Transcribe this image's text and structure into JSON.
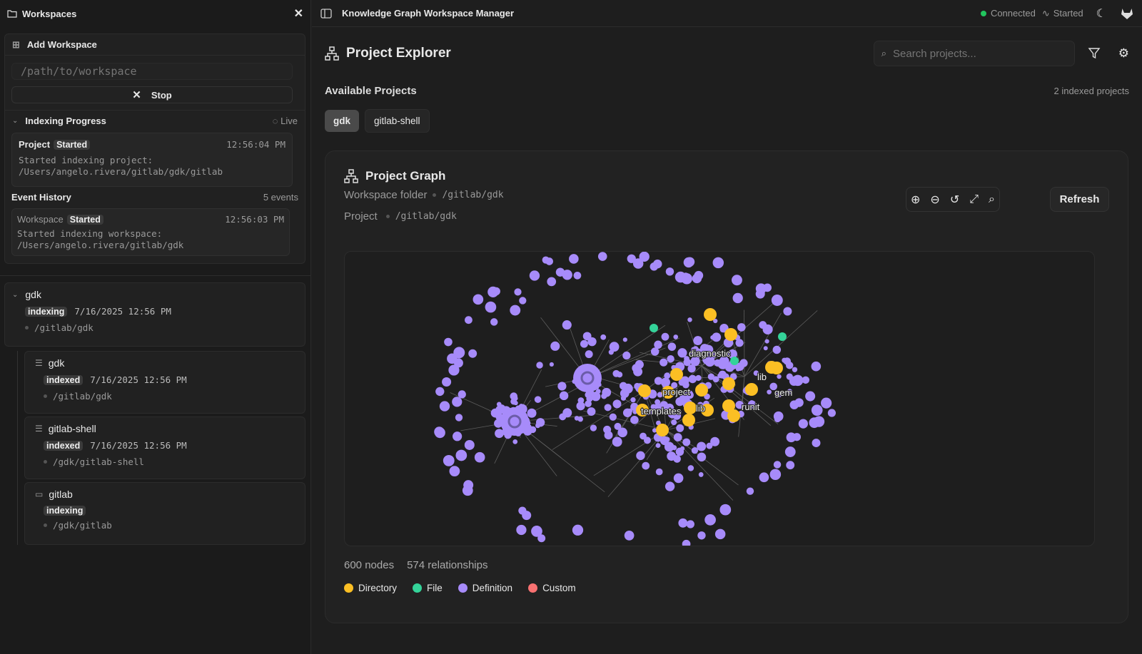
{
  "sidebar": {
    "title": "Workspaces",
    "add": {
      "title": "Add Workspace",
      "placeholder": "/path/to/workspace",
      "stop_label": "Stop"
    },
    "progress": {
      "title": "Indexing Progress",
      "live_label": "Live",
      "current": {
        "type": "Project",
        "status": "Started",
        "time": "12:56:04 PM",
        "message": "Started indexing project:",
        "path": "/Users/angelo.rivera/gitlab/gdk/gitlab"
      }
    },
    "history": {
      "title": "Event History",
      "count": "5 events",
      "events": [
        {
          "type": "Workspace",
          "status": "Started",
          "time": "12:56:03 PM",
          "message": "Started indexing workspace:",
          "path": "/Users/angelo.rivera/gitlab/gdk"
        }
      ]
    },
    "workspace": {
      "name": "gdk",
      "status": "indexing",
      "date": "7/16/2025 12:56 PM",
      "path": "/gitlab/gdk",
      "projects": [
        {
          "name": "gdk",
          "status": "indexed",
          "date": "7/16/2025 12:56 PM",
          "path": "/gitlab/gdk"
        },
        {
          "name": "gitlab-shell",
          "status": "indexed",
          "date": "7/16/2025 12:56 PM",
          "path": "/gdk/gitlab-shell"
        },
        {
          "name": "gitlab",
          "status": "indexing",
          "date": "",
          "path": "/gdk/gitlab"
        }
      ]
    }
  },
  "topbar": {
    "title": "Knowledge Graph Workspace Manager",
    "connection": "Connected",
    "status": "Started",
    "connection_color": "#22c55e"
  },
  "explorer": {
    "title": "Project Explorer",
    "search_placeholder": "Search projects...",
    "available_title": "Available Projects",
    "indexed_count": "2 indexed projects",
    "projects": [
      {
        "label": "gdk",
        "selected": true
      },
      {
        "label": "gitlab-shell",
        "selected": false
      }
    ]
  },
  "graph": {
    "title": "Project Graph",
    "workspace_label": "Workspace folder",
    "workspace_path": "/gitlab/gdk",
    "project_label": "Project",
    "project_path": "/gitlab/gdk",
    "refresh_label": "Refresh",
    "nodes": "600 nodes",
    "relationships": "574 relationships",
    "node_labels": [
      "diagnostic",
      "project",
      "templates",
      "lib",
      "lib",
      "gem",
      "runit"
    ],
    "legend": [
      {
        "label": "Directory",
        "color": "#fbbf24"
      },
      {
        "label": "File",
        "color": "#34d399"
      },
      {
        "label": "Definition",
        "color": "#a78bfa"
      },
      {
        "label": "Custom",
        "color": "#f87171"
      }
    ]
  }
}
